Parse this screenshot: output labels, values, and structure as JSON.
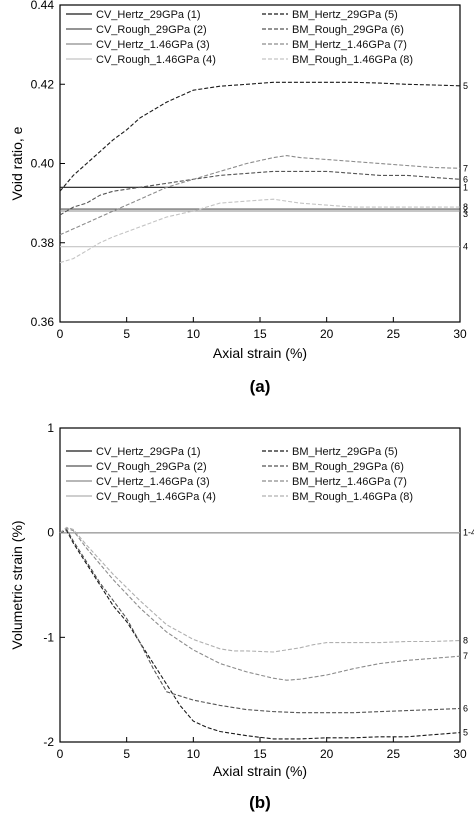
{
  "chart_data": [
    {
      "type": "line",
      "panel_label": "(a)",
      "xlabel": "Axial strain (%)",
      "ylabel": "Void ratio, e",
      "xlim": [
        0,
        30
      ],
      "ylim": [
        0.36,
        0.44
      ],
      "xticks": [
        0,
        5,
        10,
        15,
        20,
        25,
        30
      ],
      "yticks": [
        0.36,
        0.38,
        0.4,
        0.42,
        0.44
      ],
      "ytick_decimals": 2,
      "grid": false,
      "legend_position": "top",
      "series": [
        {
          "name": "CV_Hertz_29GPa (1)",
          "end_label": "1",
          "style": "solid",
          "color": "#1a1a1a",
          "x": [
            0,
            30
          ],
          "y": [
            0.394,
            0.394
          ]
        },
        {
          "name": "CV_Rough_29GPa (2)",
          "end_label": "2",
          "style": "solid",
          "color": "#555555",
          "x": [
            0,
            30
          ],
          "y": [
            0.3885,
            0.3885
          ]
        },
        {
          "name": "CV_Hertz_1.46GPa (3)",
          "end_label": "3",
          "style": "solid",
          "color": "#8c8c8c",
          "x": [
            0,
            30
          ],
          "y": [
            0.388,
            0.388
          ]
        },
        {
          "name": "CV_Rough_1.46GPa (4)",
          "end_label": "4",
          "style": "solid",
          "color": "#c4c4c4",
          "x": [
            0,
            30
          ],
          "y": [
            0.379,
            0.379
          ]
        },
        {
          "name": "BM_Hertz_29GPa (5)",
          "end_label": "5",
          "style": "dashed",
          "color": "#1a1a1a",
          "x": [
            0,
            1,
            2,
            3,
            4,
            5,
            6,
            7,
            8,
            9,
            10,
            11,
            12,
            14,
            16,
            18,
            20,
            22,
            24,
            26,
            28,
            30
          ],
          "y": [
            0.393,
            0.397,
            0.4,
            0.403,
            0.406,
            0.4085,
            0.4115,
            0.4135,
            0.4155,
            0.417,
            0.4185,
            0.419,
            0.4195,
            0.42,
            0.4205,
            0.4205,
            0.4205,
            0.4205,
            0.4203,
            0.42,
            0.4198,
            0.4196
          ]
        },
        {
          "name": "BM_Rough_29GPa (6)",
          "end_label": "6",
          "style": "dashed",
          "color": "#555555",
          "x": [
            0,
            1,
            2,
            3,
            4,
            6,
            8,
            10,
            12,
            14,
            16,
            18,
            20,
            22,
            24,
            26,
            28,
            30
          ],
          "y": [
            0.387,
            0.389,
            0.39,
            0.392,
            0.393,
            0.394,
            0.395,
            0.396,
            0.397,
            0.3975,
            0.398,
            0.398,
            0.398,
            0.3975,
            0.397,
            0.397,
            0.3965,
            0.396
          ]
        },
        {
          "name": "BM_Hertz_1.46GPa (7)",
          "end_label": "7",
          "style": "dashed",
          "color": "#8c8c8c",
          "x": [
            0,
            2,
            4,
            6,
            8,
            10,
            12,
            14,
            16,
            17,
            18,
            20,
            22,
            24,
            26,
            28,
            30
          ],
          "y": [
            0.382,
            0.385,
            0.388,
            0.391,
            0.394,
            0.396,
            0.398,
            0.4,
            0.4015,
            0.402,
            0.4015,
            0.401,
            0.4005,
            0.4,
            0.3995,
            0.399,
            0.3988
          ]
        },
        {
          "name": "BM_Rough_1.46GPa (8)",
          "end_label": "8",
          "style": "dashed",
          "color": "#c4c4c4",
          "x": [
            0,
            1,
            2,
            3,
            4,
            6,
            8,
            10,
            12,
            14,
            16,
            18,
            20,
            22,
            24,
            26,
            28,
            30
          ],
          "y": [
            0.375,
            0.376,
            0.378,
            0.38,
            0.3815,
            0.384,
            0.3865,
            0.388,
            0.39,
            0.3905,
            0.391,
            0.39,
            0.3895,
            0.389,
            0.389,
            0.389,
            0.389,
            0.389
          ]
        }
      ]
    },
    {
      "type": "line",
      "panel_label": "(b)",
      "xlabel": "Axial strain (%)",
      "ylabel": "Volumetric strain (%)",
      "xlim": [
        0,
        30
      ],
      "ylim": [
        -2,
        1
      ],
      "xticks": [
        0,
        5,
        10,
        15,
        20,
        25,
        30
      ],
      "yticks": [
        -2,
        -1,
        0,
        1
      ],
      "ytick_decimals": 0,
      "grid": false,
      "legend_position": "top",
      "series": [
        {
          "name": "CV_Hertz_29GPa (1)",
          "style": "solid",
          "color": "#1a1a1a",
          "x": [
            0,
            30
          ],
          "y": [
            0,
            0
          ]
        },
        {
          "name": "CV_Rough_29GPa (2)",
          "style": "solid",
          "color": "#555555",
          "x": [
            0,
            30
          ],
          "y": [
            0,
            0
          ]
        },
        {
          "name": "CV_Hertz_1.46GPa (3)",
          "style": "solid",
          "color": "#8c8c8c",
          "x": [
            0,
            30
          ],
          "y": [
            0,
            0
          ]
        },
        {
          "name": "CV_Rough_1.46GPa (4)",
          "end_label": "1-4",
          "style": "solid",
          "color": "#b0b0b0",
          "x": [
            0,
            30
          ],
          "y": [
            0,
            0
          ]
        },
        {
          "name": "BM_Hertz_29GPa (5)",
          "end_label": "5",
          "style": "dashed",
          "color": "#1a1a1a",
          "x": [
            0,
            0.5,
            1,
            2,
            3,
            4,
            5,
            6,
            7,
            8,
            9,
            10,
            11,
            12,
            14,
            16,
            18,
            20,
            22,
            24,
            26,
            28,
            30
          ],
          "y": [
            0,
            0.02,
            -0.1,
            -0.3,
            -0.5,
            -0.7,
            -0.85,
            -1.05,
            -1.25,
            -1.45,
            -1.65,
            -1.8,
            -1.86,
            -1.9,
            -1.94,
            -1.97,
            -1.97,
            -1.96,
            -1.96,
            -1.95,
            -1.95,
            -1.93,
            -1.91
          ]
        },
        {
          "name": "BM_Rough_29GPa (6)",
          "end_label": "6",
          "style": "dashed",
          "color": "#555555",
          "x": [
            0,
            0.5,
            1,
            2,
            3,
            4,
            5,
            6,
            7,
            8,
            10,
            12,
            14,
            16,
            18,
            20,
            22,
            24,
            26,
            28,
            30
          ],
          "y": [
            0,
            0.03,
            -0.08,
            -0.28,
            -0.48,
            -0.65,
            -0.82,
            -1.05,
            -1.3,
            -1.52,
            -1.6,
            -1.65,
            -1.69,
            -1.71,
            -1.72,
            -1.72,
            -1.72,
            -1.71,
            -1.7,
            -1.69,
            -1.68
          ]
        },
        {
          "name": "BM_Hertz_1.46GPa (7)",
          "end_label": "7",
          "style": "dashed",
          "color": "#8c8c8c",
          "x": [
            0,
            0.5,
            1,
            2,
            4,
            6,
            8,
            10,
            12,
            14,
            16,
            17,
            18,
            20,
            22,
            24,
            26,
            28,
            30
          ],
          "y": [
            0,
            0.04,
            0.02,
            -0.15,
            -0.45,
            -0.72,
            -0.95,
            -1.12,
            -1.25,
            -1.33,
            -1.39,
            -1.41,
            -1.4,
            -1.36,
            -1.3,
            -1.25,
            -1.22,
            -1.2,
            -1.18
          ]
        },
        {
          "name": "BM_Rough_1.46GPa (8)",
          "end_label": "8",
          "style": "dashed",
          "color": "#b0b0b0",
          "x": [
            0,
            0.5,
            1,
            2,
            4,
            6,
            8,
            10,
            12,
            13,
            14,
            16,
            18,
            19,
            20,
            22,
            24,
            26,
            28,
            30
          ],
          "y": [
            0,
            0.05,
            0.03,
            -0.12,
            -0.4,
            -0.65,
            -0.88,
            -1.02,
            -1.11,
            -1.13,
            -1.13,
            -1.14,
            -1.1,
            -1.07,
            -1.05,
            -1.05,
            -1.05,
            -1.04,
            -1.04,
            -1.03
          ]
        }
      ]
    }
  ]
}
